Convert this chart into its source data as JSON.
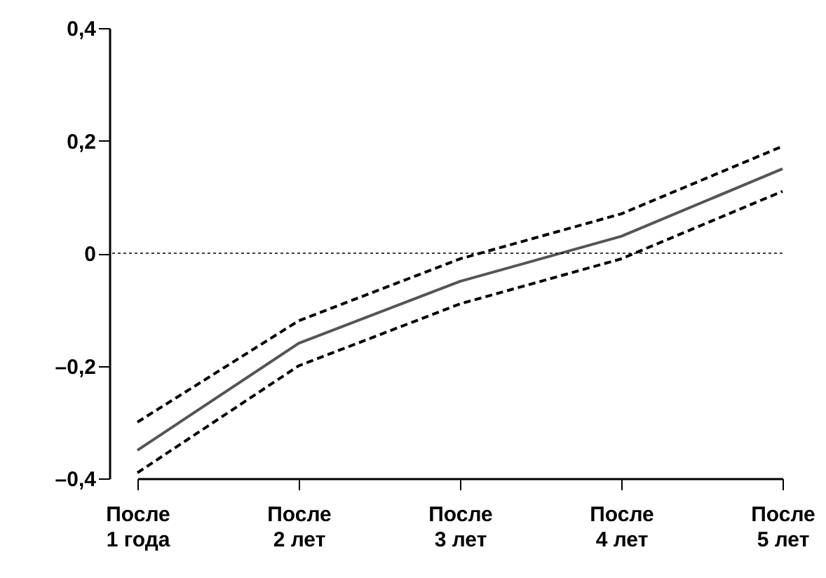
{
  "chart_data": {
    "type": "line",
    "categories": [
      "После\n1 года",
      "После\n2 лет",
      "После\n3 лет",
      "После\n4 лет",
      "После\n5 лет"
    ],
    "ylim": [
      -0.4,
      0.4
    ],
    "yticks": [
      {
        "value": -0.4,
        "label": "–0,4"
      },
      {
        "value": -0.2,
        "label": "–0,2"
      },
      {
        "value": 0,
        "label": "0"
      },
      {
        "value": 0.2,
        "label": "0,2"
      },
      {
        "value": 0.4,
        "label": "0,4"
      }
    ],
    "marker": "none",
    "series": [
      {
        "color": "#555555",
        "line_style": "solid",
        "values": [
          -0.35,
          -0.16,
          -0.05,
          0.03,
          0.15
        ]
      },
      {
        "color": "#000000",
        "line_style": "dashed",
        "values": [
          -0.3,
          -0.12,
          -0.01,
          0.07,
          0.19
        ]
      },
      {
        "color": "#000000",
        "line_style": "dashed",
        "values": [
          -0.39,
          -0.2,
          -0.09,
          -0.01,
          0.11
        ]
      }
    ],
    "ref_lines": [
      {
        "axis": "y",
        "value": 0,
        "label": null,
        "color": "#000000",
        "line_style": "dotted"
      }
    ]
  }
}
